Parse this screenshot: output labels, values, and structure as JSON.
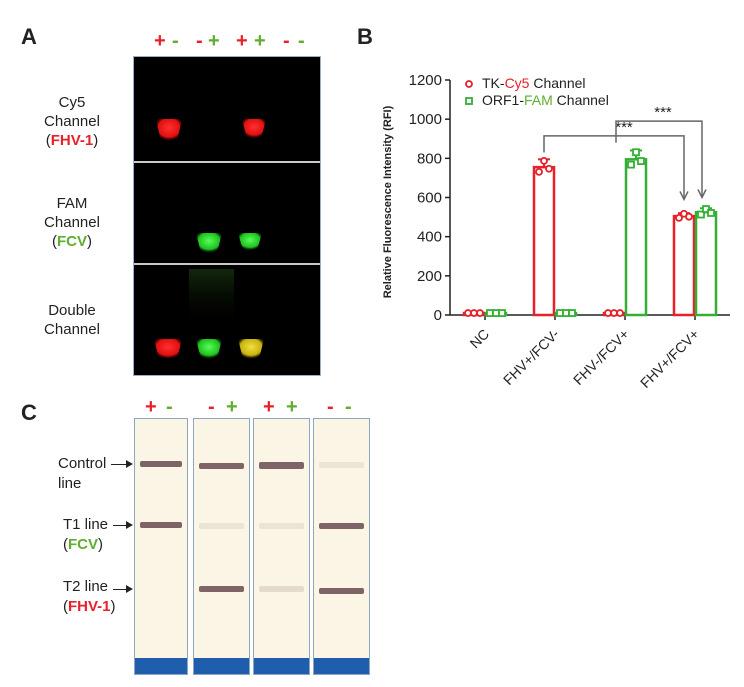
{
  "panels": {
    "a": "A",
    "b": "B",
    "c": "C"
  },
  "panelA": {
    "signs": [
      {
        "text": "+",
        "color": "#e8202a"
      },
      {
        "text": "-",
        "color": "#5fae2e"
      },
      {
        "text": "-",
        "color": "#e8202a"
      },
      {
        "text": "+",
        "color": "#5fae2e"
      },
      {
        "text": "+",
        "color": "#e8202a"
      },
      {
        "text": "+",
        "color": "#5fae2e"
      },
      {
        "text": "-",
        "color": "#e8202a"
      },
      {
        "text": "-",
        "color": "#5fae2e"
      }
    ],
    "rows": [
      {
        "line1": "Cy5",
        "line2": "Channel",
        "open": "(",
        "target": "FHV-1",
        "close": ")"
      },
      {
        "line1": "FAM",
        "line2": "Channel",
        "open": "(",
        "target": "FCV",
        "close": ")"
      },
      {
        "line1": "Double",
        "line2": "Channel"
      }
    ]
  },
  "panelC": {
    "signs": [
      {
        "text": "+",
        "color": "#e8202a"
      },
      {
        "text": "-",
        "color": "#5fae2e"
      },
      {
        "text": "-",
        "color": "#e8202a"
      },
      {
        "text": "+",
        "color": "#5fae2e"
      },
      {
        "text": "+",
        "color": "#e8202a"
      },
      {
        "text": "+",
        "color": "#5fae2e"
      },
      {
        "text": "-",
        "color": "#e8202a"
      },
      {
        "text": "-",
        "color": "#5fae2e"
      }
    ],
    "labels": {
      "control1": "Control",
      "control2": "line",
      "t1": "T1 line",
      "t1_open": "(",
      "t1_target": "FCV",
      "t1_close": ")",
      "t2": "T2 line",
      "t2_open": "(",
      "t2_target": "FHV-1",
      "t2_close": ")"
    }
  },
  "chart_data": {
    "type": "bar",
    "ylabel": "Relative Fluorescence Intensity (RFI)",
    "ylim": [
      0,
      1200
    ],
    "yticks": [
      "0",
      "200",
      "400",
      "600",
      "800",
      "1000",
      "1200"
    ],
    "categories": [
      "NC",
      "FHV+/FCV-",
      "FHV-/FCV+",
      "FHV+/FCV+"
    ],
    "series": [
      {
        "name": "TK-Cy5 Channel",
        "name_prefix": "TK-",
        "name_dye": "Cy5",
        "name_suffix": " Channel",
        "color": "#e8202a",
        "marker": "circle",
        "values": [
          10,
          755,
          10,
          505
        ],
        "errors": [
          0,
          40,
          0,
          15
        ]
      },
      {
        "name": "ORF1-FAM Channel",
        "name_prefix": "ORF1-",
        "name_dye": "FAM",
        "name_suffix": " Channel",
        "color": "#33b033",
        "marker": "square",
        "values": [
          10,
          10,
          795,
          525
        ],
        "errors": [
          0,
          0,
          45,
          20
        ]
      }
    ],
    "significance": [
      "***",
      "***"
    ],
    "legend": "top-left"
  }
}
